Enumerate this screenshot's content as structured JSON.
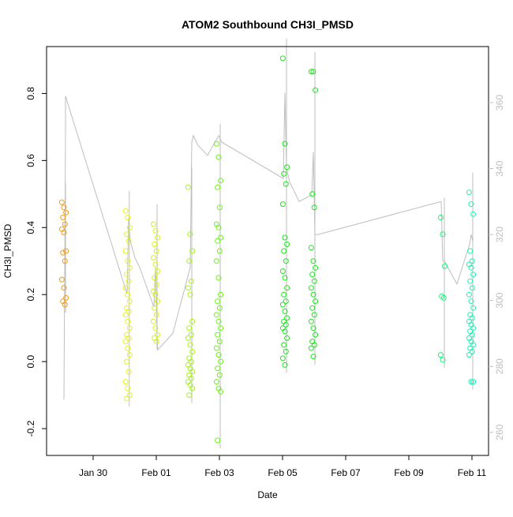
{
  "chart_data": {
    "type": "scatter",
    "title": "ATOM2 Southbound CH3I_PMSD",
    "xlabel": "Date",
    "ylabel": "CH3I_PMSD",
    "x_ticks": [
      "Jan 30",
      "Feb 01",
      "Feb 03",
      "Feb 05",
      "Feb 07",
      "Feb 09",
      "Feb 11"
    ],
    "y_ticks": [
      "-0.2",
      "0.0",
      "0.2",
      "0.4",
      "0.6",
      "0.8"
    ],
    "y2_ticks": [
      "260",
      "280",
      "300",
      "320",
      "340",
      "360"
    ],
    "xlim": [
      -2.5,
      11.5
    ],
    "ylim": [
      -0.28,
      0.94
    ],
    "y2lim": [
      253,
      377
    ],
    "line_color": "#bebebe",
    "marker": "open-circle",
    "flights": [
      {
        "x": -1.95,
        "color": "#f29b1c",
        "points": [
          0.475,
          0.46,
          0.445,
          0.43,
          0.41,
          0.395,
          0.385,
          0.33,
          0.325,
          0.3,
          0.245,
          0.22,
          0.19,
          0.18,
          0.17
        ]
      },
      {
        "x": 0.07,
        "color": "#e6f21c",
        "points": [
          0.45,
          0.43,
          0.4,
          0.38,
          0.36,
          0.33,
          0.3,
          0.28,
          0.26,
          0.24,
          0.22,
          0.2,
          0.18,
          0.16,
          0.15,
          0.14,
          0.12,
          0.1,
          0.08,
          0.07,
          0.06,
          0.04,
          0.02,
          0.0,
          -0.03,
          -0.06,
          -0.08,
          -0.1,
          -0.11
        ]
      },
      {
        "x": 0.95,
        "color": "#d6f21c",
        "points": [
          0.41,
          0.39,
          0.37,
          0.35,
          0.33,
          0.31,
          0.29,
          0.27,
          0.25,
          0.23,
          0.21,
          0.2,
          0.18,
          0.16,
          0.14,
          0.12,
          0.1,
          0.08,
          0.07,
          0.06
        ]
      },
      {
        "x": 2.05,
        "color": "#a8f21c",
        "points": [
          0.52,
          0.38,
          0.33,
          0.3,
          0.24,
          0.22,
          0.2,
          0.12,
          0.1,
          0.08,
          0.07,
          0.05,
          0.03,
          0.01,
          0.0,
          -0.01,
          -0.02,
          -0.03,
          -0.04,
          -0.05,
          -0.06,
          -0.07,
          -0.08,
          -0.1
        ]
      },
      {
        "x": 2.95,
        "color": "#6ef21c",
        "points": [
          0.65,
          0.61,
          0.54,
          0.52,
          0.46,
          0.41,
          0.4,
          0.37,
          0.36,
          0.33,
          0.3,
          0.25,
          0.2,
          0.18,
          0.16,
          0.14,
          0.12,
          0.1,
          0.08,
          0.06,
          0.04,
          0.02,
          0.0,
          -0.02,
          -0.04,
          -0.06,
          -0.08,
          -0.09,
          -0.235
        ]
      },
      {
        "x": 5.05,
        "color": "#1ce61c",
        "points": [
          0.905,
          0.65,
          0.58,
          0.56,
          0.53,
          0.47,
          0.37,
          0.35,
          0.33,
          0.3,
          0.27,
          0.25,
          0.22,
          0.2,
          0.18,
          0.17,
          0.15,
          0.13,
          0.12,
          0.11,
          0.1,
          0.09,
          0.07,
          0.05,
          0.03,
          0.01,
          -0.01
        ]
      },
      {
        "x": 5.95,
        "color": "#1ce61c",
        "points": [
          0.865,
          0.865,
          0.81,
          0.5,
          0.46,
          0.34,
          0.3,
          0.28,
          0.26,
          0.24,
          0.22,
          0.2,
          0.18,
          0.16,
          0.14,
          0.12,
          0.1,
          0.08,
          0.06,
          0.05,
          0.04,
          0.015
        ]
      },
      {
        "x": 10.05,
        "color": "#1cf27a",
        "points": [
          0.43,
          0.38,
          0.285,
          0.195,
          0.19,
          0.02,
          0.005
        ]
      },
      {
        "x": 10.95,
        "color": "#1cf2b4",
        "points": [
          0.505,
          0.47,
          0.44,
          0.33,
          0.3,
          0.29,
          0.28,
          0.26,
          0.24,
          0.22,
          0.2,
          0.18,
          0.16,
          0.14,
          0.13,
          0.12,
          0.11,
          0.1,
          0.09,
          0.08,
          0.07,
          0.06,
          0.05,
          0.04,
          0.03,
          0.02,
          -0.06,
          -0.06
        ]
      }
    ],
    "altitude_series": {
      "name": "",
      "x": [
        -1.95,
        -1.9,
        -1.9,
        0.05,
        0.1,
        0.15,
        0.3,
        0.45,
        0.9,
        0.95,
        1.0,
        1.02,
        1.5,
        2.05,
        2.1,
        2.15,
        2.2,
        2.3,
        2.6,
        2.95,
        3.0,
        3.05,
        5.0,
        5.05,
        5.1,
        5.2,
        5.5,
        5.9,
        5.95,
        6.0,
        6.1,
        10.0,
        10.05,
        10.1,
        10.5,
        10.9,
        10.95,
        11.0
      ],
      "y": [
        270,
        350,
        362,
        302,
        325,
        318,
        313,
        310,
        298,
        310,
        290,
        285,
        290,
        310,
        348,
        350,
        349,
        347,
        344,
        350,
        349,
        348,
        337,
        363,
        340,
        336,
        330,
        332,
        345,
        320,
        320,
        330,
        312,
        312,
        305,
        317,
        320,
        318
      ]
    }
  }
}
